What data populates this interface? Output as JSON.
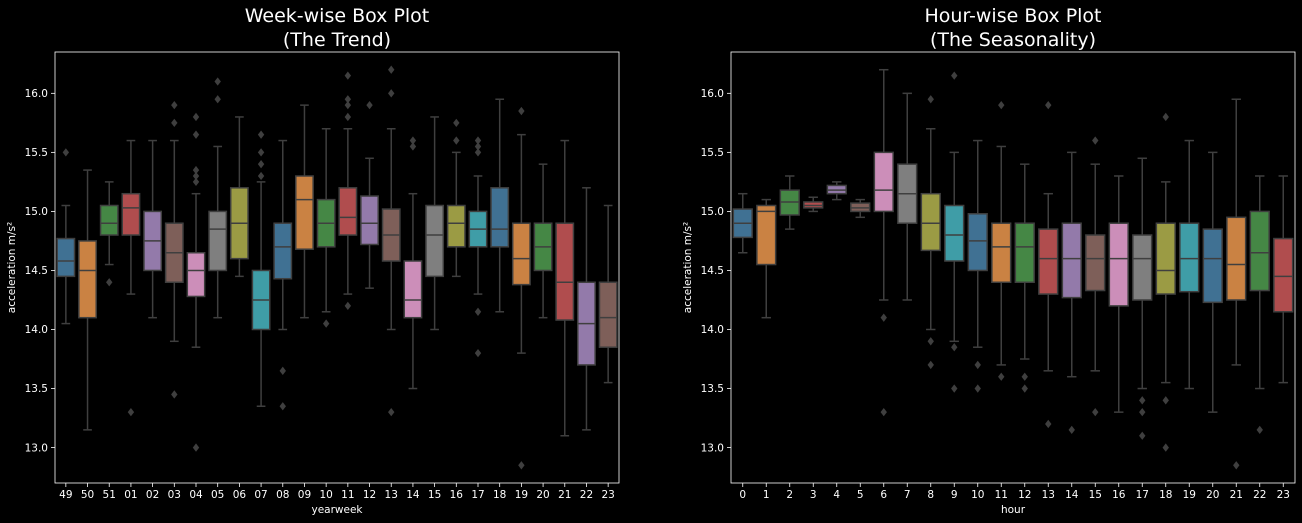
{
  "chart_data": [
    {
      "type": "box",
      "title": "Week-wise Box Plot\n(The Trend)",
      "xlabel": "yearweek",
      "ylabel": "acceleration m/s²",
      "ylim": [
        12.7,
        16.35
      ],
      "yticks": [
        13.0,
        13.5,
        14.0,
        14.5,
        15.0,
        15.5,
        16.0
      ],
      "ytick_labels": [
        "13.0",
        "13.5",
        "14.0",
        "14.5",
        "15.0",
        "15.5",
        "16.0"
      ],
      "categories": [
        "49",
        "50",
        "51",
        "01",
        "02",
        "03",
        "04",
        "05",
        "06",
        "07",
        "08",
        "09",
        "10",
        "11",
        "12",
        "13",
        "14",
        "15",
        "16",
        "17",
        "18",
        "19",
        "20",
        "21",
        "22",
        "23"
      ],
      "colors": [
        "#3274a1",
        "#e1812c",
        "#3a923a",
        "#c03d3e",
        "#9372b2",
        "#845b53",
        "#d684bd",
        "#7f7f7f",
        "#a9aa35",
        "#2eabb8",
        "#3274a1",
        "#e1812c",
        "#3a923a",
        "#c03d3e",
        "#9372b2",
        "#845b53",
        "#d684bd",
        "#7f7f7f",
        "#a9aa35",
        "#2eabb8",
        "#3274a1",
        "#e1812c",
        "#3a923a",
        "#c03d3e",
        "#9372b2",
        "#845b53"
      ],
      "boxes": [
        {
          "whislo": 14.05,
          "q1": 14.45,
          "med": 14.58,
          "q3": 14.77,
          "whishi": 15.05,
          "fliers": [
            15.5
          ]
        },
        {
          "whislo": 13.15,
          "q1": 14.1,
          "med": 14.5,
          "q3": 14.75,
          "whishi": 15.35,
          "fliers": []
        },
        {
          "whislo": 14.55,
          "q1": 14.8,
          "med": 14.9,
          "q3": 15.05,
          "whishi": 15.25,
          "fliers": [
            14.4
          ]
        },
        {
          "whislo": 14.3,
          "q1": 14.8,
          "med": 15.03,
          "q3": 15.15,
          "whishi": 15.6,
          "fliers": [
            13.3
          ]
        },
        {
          "whislo": 14.1,
          "q1": 14.5,
          "med": 14.75,
          "q3": 15.0,
          "whishi": 15.6,
          "fliers": []
        },
        {
          "whislo": 13.9,
          "q1": 14.4,
          "med": 14.65,
          "q3": 14.9,
          "whishi": 15.6,
          "fliers": [
            15.75,
            15.9,
            13.45
          ]
        },
        {
          "whislo": 13.85,
          "q1": 14.28,
          "med": 14.5,
          "q3": 14.65,
          "whishi": 15.15,
          "fliers": [
            15.25,
            15.3,
            15.35,
            15.65,
            15.8,
            13.0
          ]
        },
        {
          "whislo": 14.1,
          "q1": 14.5,
          "med": 14.85,
          "q3": 15.0,
          "whishi": 15.55,
          "fliers": [
            15.95,
            16.1
          ]
        },
        {
          "whislo": 14.45,
          "q1": 14.6,
          "med": 14.9,
          "q3": 15.2,
          "whishi": 15.8,
          "fliers": []
        },
        {
          "whislo": 13.35,
          "q1": 14.0,
          "med": 14.25,
          "q3": 14.5,
          "whishi": 15.25,
          "fliers": [
            15.3,
            15.4,
            15.5,
            15.65
          ]
        },
        {
          "whislo": 14.0,
          "q1": 14.43,
          "med": 14.7,
          "q3": 14.9,
          "whishi": 15.6,
          "fliers": [
            13.65,
            13.35
          ]
        },
        {
          "whislo": 14.1,
          "q1": 14.68,
          "med": 15.1,
          "q3": 15.3,
          "whishi": 15.9,
          "fliers": []
        },
        {
          "whislo": 14.15,
          "q1": 14.7,
          "med": 14.9,
          "q3": 15.1,
          "whishi": 15.7,
          "fliers": [
            14.05
          ]
        },
        {
          "whislo": 14.3,
          "q1": 14.8,
          "med": 14.95,
          "q3": 15.2,
          "whishi": 15.7,
          "fliers": [
            15.8,
            15.9,
            15.95,
            16.15,
            14.2
          ]
        },
        {
          "whislo": 14.35,
          "q1": 14.72,
          "med": 14.9,
          "q3": 15.13,
          "whishi": 15.45,
          "fliers": [
            15.9
          ]
        },
        {
          "whislo": 14.0,
          "q1": 14.58,
          "med": 14.8,
          "q3": 15.02,
          "whishi": 15.7,
          "fliers": [
            16.0,
            16.2,
            13.3
          ]
        },
        {
          "whislo": 13.5,
          "q1": 14.1,
          "med": 14.25,
          "q3": 14.58,
          "whishi": 15.15,
          "fliers": [
            15.55,
            15.6
          ]
        },
        {
          "whislo": 14.0,
          "q1": 14.45,
          "med": 14.8,
          "q3": 15.05,
          "whishi": 15.8,
          "fliers": []
        },
        {
          "whislo": 14.45,
          "q1": 14.7,
          "med": 14.9,
          "q3": 15.05,
          "whishi": 15.5,
          "fliers": [
            15.6,
            15.75
          ]
        },
        {
          "whislo": 14.3,
          "q1": 14.7,
          "med": 14.85,
          "q3": 15.0,
          "whishi": 15.3,
          "fliers": [
            15.5,
            15.55,
            15.6,
            14.15,
            13.8
          ]
        },
        {
          "whislo": 14.15,
          "q1": 14.7,
          "med": 14.85,
          "q3": 15.2,
          "whishi": 15.95,
          "fliers": []
        },
        {
          "whislo": 13.8,
          "q1": 14.38,
          "med": 14.6,
          "q3": 14.9,
          "whishi": 15.65,
          "fliers": [
            15.85,
            12.85
          ]
        },
        {
          "whislo": 14.1,
          "q1": 14.5,
          "med": 14.7,
          "q3": 14.9,
          "whishi": 15.4,
          "fliers": []
        },
        {
          "whislo": 13.1,
          "q1": 14.08,
          "med": 14.4,
          "q3": 14.9,
          "whishi": 15.6,
          "fliers": []
        },
        {
          "whislo": 13.15,
          "q1": 13.7,
          "med": 14.05,
          "q3": 14.4,
          "whishi": 15.2,
          "fliers": []
        },
        {
          "whislo": 13.55,
          "q1": 13.85,
          "med": 14.1,
          "q3": 14.4,
          "whishi": 15.05,
          "fliers": []
        }
      ]
    },
    {
      "type": "box",
      "title": "Hour-wise Box Plot\n(The Seasonality)",
      "xlabel": "hour",
      "ylabel": "acceleration m/s²",
      "ylim": [
        12.7,
        16.35
      ],
      "yticks": [
        13.0,
        13.5,
        14.0,
        14.5,
        15.0,
        15.5,
        16.0
      ],
      "ytick_labels": [
        "13.0",
        "13.5",
        "14.0",
        "14.5",
        "15.0",
        "15.5",
        "16.0"
      ],
      "categories": [
        "0",
        "1",
        "2",
        "3",
        "4",
        "5",
        "6",
        "7",
        "8",
        "9",
        "10",
        "11",
        "12",
        "13",
        "14",
        "15",
        "16",
        "17",
        "18",
        "19",
        "20",
        "21",
        "22",
        "23"
      ],
      "colors": [
        "#3274a1",
        "#e1812c",
        "#3a923a",
        "#c03d3e",
        "#9372b2",
        "#845b53",
        "#d684bd",
        "#7f7f7f",
        "#a9aa35",
        "#2eabb8",
        "#3274a1",
        "#e1812c",
        "#3a923a",
        "#c03d3e",
        "#9372b2",
        "#845b53",
        "#d684bd",
        "#7f7f7f",
        "#a9aa35",
        "#2eabb8",
        "#3274a1",
        "#e1812c",
        "#3a923a",
        "#c03d3e"
      ],
      "boxes": [
        {
          "whislo": 14.65,
          "q1": 14.78,
          "med": 14.9,
          "q3": 15.02,
          "whishi": 15.15,
          "fliers": []
        },
        {
          "whislo": 14.1,
          "q1": 14.55,
          "med": 15.0,
          "q3": 15.05,
          "whishi": 15.1,
          "fliers": []
        },
        {
          "whislo": 14.85,
          "q1": 14.97,
          "med": 15.08,
          "q3": 15.18,
          "whishi": 15.3,
          "fliers": []
        },
        {
          "whislo": 15.0,
          "q1": 15.03,
          "med": 15.05,
          "q3": 15.08,
          "whishi": 15.12,
          "fliers": []
        },
        {
          "whislo": 15.1,
          "q1": 15.15,
          "med": 15.18,
          "q3": 15.22,
          "whishi": 15.25,
          "fliers": []
        },
        {
          "whislo": 14.95,
          "q1": 15.0,
          "med": 15.03,
          "q3": 15.07,
          "whishi": 15.1,
          "fliers": []
        },
        {
          "whislo": 14.25,
          "q1": 15.0,
          "med": 15.18,
          "q3": 15.5,
          "whishi": 16.2,
          "fliers": [
            14.1,
            13.3
          ]
        },
        {
          "whislo": 14.25,
          "q1": 14.9,
          "med": 15.15,
          "q3": 15.4,
          "whishi": 16.0,
          "fliers": []
        },
        {
          "whislo": 14.0,
          "q1": 14.67,
          "med": 14.9,
          "q3": 15.15,
          "whishi": 15.7,
          "fliers": [
            15.95,
            13.9,
            13.7
          ]
        },
        {
          "whislo": 13.9,
          "q1": 14.58,
          "med": 14.8,
          "q3": 15.05,
          "whishi": 15.5,
          "fliers": [
            16.15,
            13.85,
            13.5
          ]
        },
        {
          "whislo": 13.85,
          "q1": 14.5,
          "med": 14.75,
          "q3": 14.98,
          "whishi": 15.6,
          "fliers": [
            13.7,
            13.5
          ]
        },
        {
          "whislo": 13.7,
          "q1": 14.4,
          "med": 14.7,
          "q3": 14.9,
          "whishi": 15.55,
          "fliers": [
            15.9,
            13.6
          ]
        },
        {
          "whislo": 13.75,
          "q1": 14.4,
          "med": 14.7,
          "q3": 14.9,
          "whishi": 15.4,
          "fliers": [
            13.6,
            13.5
          ]
        },
        {
          "whislo": 13.65,
          "q1": 14.3,
          "med": 14.6,
          "q3": 14.85,
          "whishi": 15.15,
          "fliers": [
            15.9,
            13.2
          ]
        },
        {
          "whislo": 13.6,
          "q1": 14.27,
          "med": 14.6,
          "q3": 14.9,
          "whishi": 15.5,
          "fliers": [
            13.15
          ]
        },
        {
          "whislo": 13.65,
          "q1": 14.33,
          "med": 14.6,
          "q3": 14.8,
          "whishi": 15.4,
          "fliers": [
            15.6,
            13.3
          ]
        },
        {
          "whislo": 13.3,
          "q1": 14.2,
          "med": 14.6,
          "q3": 14.9,
          "whishi": 15.3,
          "fliers": []
        },
        {
          "whislo": 13.5,
          "q1": 14.25,
          "med": 14.6,
          "q3": 14.8,
          "whishi": 15.45,
          "fliers": [
            13.4,
            13.3,
            13.1
          ]
        },
        {
          "whislo": 13.55,
          "q1": 14.3,
          "med": 14.5,
          "q3": 14.9,
          "whishi": 15.25,
          "fliers": [
            15.8,
            13.4,
            13.0
          ]
        },
        {
          "whislo": 13.5,
          "q1": 14.32,
          "med": 14.6,
          "q3": 14.9,
          "whishi": 15.6,
          "fliers": []
        },
        {
          "whislo": 13.3,
          "q1": 14.23,
          "med": 14.6,
          "q3": 14.85,
          "whishi": 15.5,
          "fliers": []
        },
        {
          "whislo": 13.7,
          "q1": 14.25,
          "med": 14.55,
          "q3": 14.95,
          "whishi": 15.95,
          "fliers": [
            12.85
          ]
        },
        {
          "whislo": 13.5,
          "q1": 14.33,
          "med": 14.65,
          "q3": 15.0,
          "whishi": 15.3,
          "fliers": [
            13.15
          ]
        },
        {
          "whislo": 13.55,
          "q1": 14.15,
          "med": 14.45,
          "q3": 14.77,
          "whishi": 15.3,
          "fliers": []
        }
      ]
    }
  ]
}
